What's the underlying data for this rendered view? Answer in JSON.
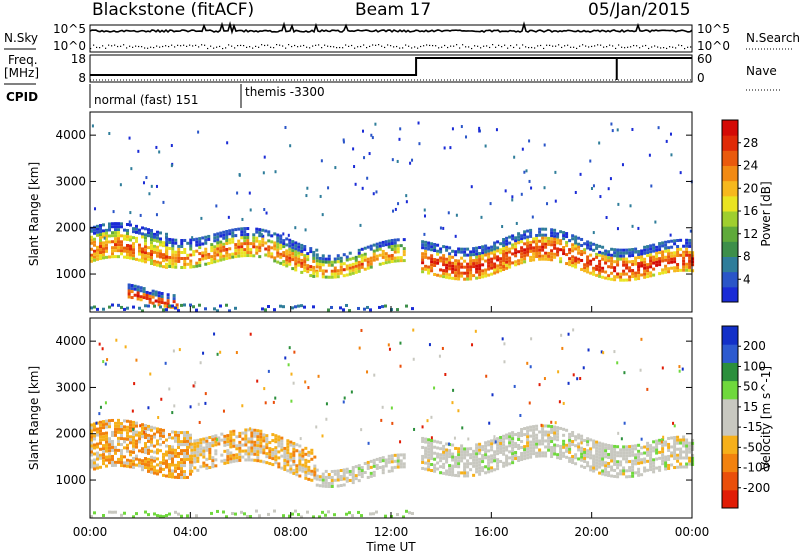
{
  "header": {
    "radar": "Blackstone (fitACF)",
    "beam": "Beam 17",
    "date": "05/Jan/2015"
  },
  "ops_panel": {
    "nsky_label": "N.Sky",
    "nsearch_label": "N.Search",
    "freq_label_1": "Freq.",
    "freq_label_2": "[MHz]",
    "nave_label": "Nave",
    "cpid_label": "CPID",
    "left_ticks_top": [
      "10^5",
      "10^0"
    ],
    "right_ticks_top": [
      "10^5",
      "10^0"
    ],
    "left_ticks_freq": [
      "18",
      "8"
    ],
    "right_ticks_nave": [
      "60",
      "0"
    ],
    "cpid_segments": [
      {
        "label": "normal (fast) 151",
        "start_hour": 0
      },
      {
        "label": "themis -3300",
        "start_hour": 6
      }
    ],
    "freq_step_hour": 13,
    "nave_spike_hour": 21
  },
  "chart_data": [
    {
      "type": "heatmap",
      "title": "",
      "xlabel": "Time UT",
      "ylabel": "Slant Range [km]",
      "x_ticks": [
        "00:00",
        "04:00",
        "08:00",
        "12:00",
        "16:00",
        "20:00",
        "00:00"
      ],
      "xlim_hours": [
        0,
        24
      ],
      "y_ticks": [
        "1000",
        "2000",
        "3000",
        "4000"
      ],
      "ylim": [
        180,
        4500
      ],
      "colorbar": {
        "label": "Power [dB]",
        "ticks": [
          "4",
          "8",
          "12",
          "16",
          "20",
          "24",
          "28"
        ],
        "range": [
          0,
          30
        ],
        "colors": [
          "#1a2bd6",
          "#2a55c8",
          "#2f7d9a",
          "#3d8f4a",
          "#5faa3a",
          "#9fcf2e",
          "#e9e421",
          "#f6b81d",
          "#f28a12",
          "#ea5a0c",
          "#e02a07",
          "#d40a05"
        ]
      },
      "echo_bands": [
        {
          "t0": 0.0,
          "t1": 3.0,
          "r0": 1150,
          "r1": 1900,
          "level": 0.55
        },
        {
          "t0": 3.0,
          "t1": 9.0,
          "r0": 1200,
          "r1": 1800,
          "level": 0.5
        },
        {
          "t0": 9.0,
          "t1": 12.5,
          "r0": 1200,
          "r1": 1700,
          "level": 0.45
        },
        {
          "t0": 13.2,
          "t1": 24.0,
          "r0": 1050,
          "r1": 1700,
          "level": 0.75
        },
        {
          "t0": 1.5,
          "t1": 3.5,
          "r0": 320,
          "r1": 600,
          "level": 0.85
        }
      ]
    },
    {
      "type": "heatmap",
      "title": "",
      "xlabel": "Time UT",
      "ylabel": "Slant Range [km]",
      "x_ticks": [
        "00:00",
        "04:00",
        "08:00",
        "12:00",
        "16:00",
        "20:00",
        "00:00"
      ],
      "xlim_hours": [
        0,
        24
      ],
      "y_ticks": [
        "1000",
        "2000",
        "3000",
        "4000"
      ],
      "ylim": [
        180,
        4500
      ],
      "colorbar": {
        "label": "Velocity [m s^-1]",
        "ticks": [
          "200",
          "100",
          "50",
          "15",
          "-15",
          "-50",
          "-100",
          "-200"
        ],
        "range": [
          -250,
          250
        ],
        "colors": [
          "#1230c8",
          "#2d5ad0",
          "#2b8f3c",
          "#6fd83c",
          "#c8c8c0",
          "#c8c8c0",
          "#f6b01a",
          "#f2820e",
          "#ea4f0a",
          "#e01c06"
        ]
      },
      "echo_bands": [
        {
          "t0": 0.0,
          "t1": 4.0,
          "r0": 1100,
          "r1": 2100,
          "vel": -80
        },
        {
          "t0": 4.0,
          "t1": 9.0,
          "r0": 1200,
          "r1": 1900,
          "vel": -60
        },
        {
          "t0": 9.0,
          "t1": 12.5,
          "r0": 1150,
          "r1": 1500,
          "vel": 0
        },
        {
          "t0": 13.2,
          "t1": 24.0,
          "r0": 1200,
          "r1": 1900,
          "vel": 0
        }
      ]
    }
  ]
}
